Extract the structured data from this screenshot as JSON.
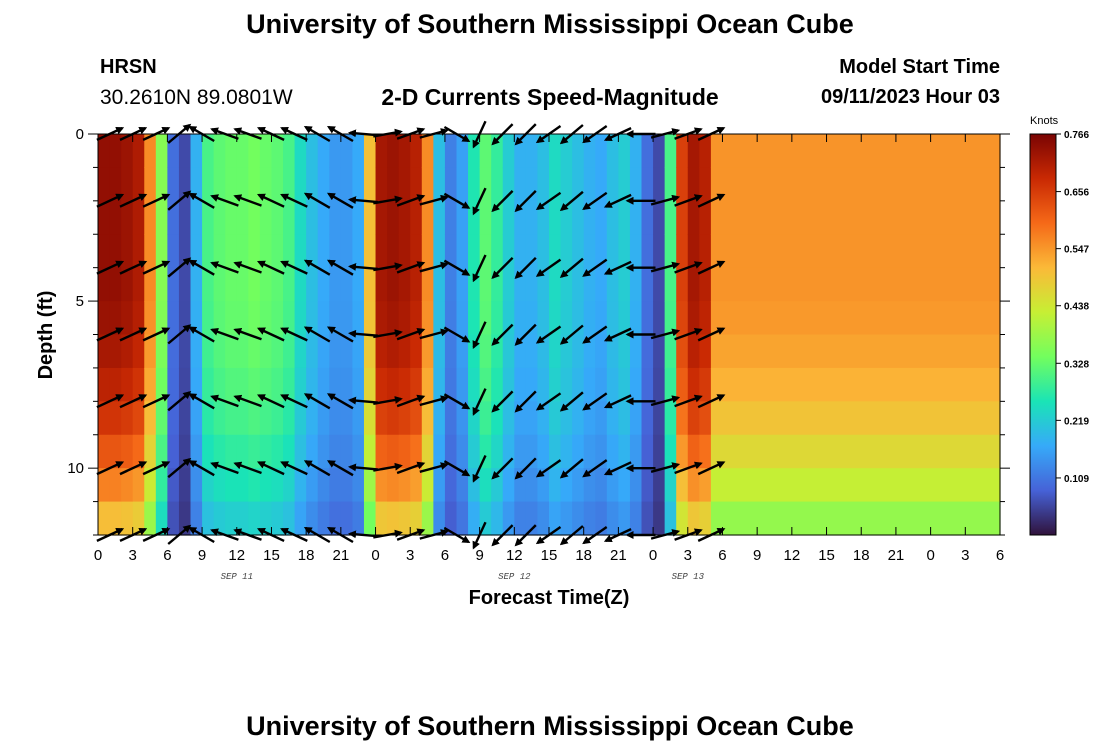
{
  "header": {
    "title": "University of Southern Mississippi Ocean Cube",
    "station": "HRSN",
    "coords": "30.2610N  89.0801W",
    "subtitle": "2-D Currents Speed-Magnitude",
    "model_start_label": "Model Start Time",
    "model_start_value": "09/11/2023 Hour 03",
    "footer_title": "University of Southern Mississippi Ocean Cube"
  },
  "chart_data": {
    "type": "heatmap",
    "xlabel": "Forecast Time(Z)",
    "ylabel": "Depth (ft)",
    "x_unit": "hours from 00Z SEP 11",
    "xlim": [
      0,
      78
    ],
    "ylim": [
      0,
      12
    ],
    "y_inverted": true,
    "x_tick_values": [
      0,
      3,
      6,
      9,
      12,
      15,
      18,
      21,
      24,
      27,
      30,
      33,
      36,
      39,
      42,
      45,
      48,
      51,
      54,
      57,
      60,
      63,
      66,
      69,
      72,
      75,
      78
    ],
    "x_tick_labels": [
      "0",
      "3",
      "6",
      "9",
      "12",
      "15",
      "18",
      "21",
      "0",
      "3",
      "6",
      "9",
      "12",
      "15",
      "18",
      "21",
      "0",
      "3",
      "6",
      "9",
      "12",
      "15",
      "18",
      "21",
      "0",
      "3",
      "6"
    ],
    "y_tick_values": [
      0,
      5,
      10
    ],
    "y_tick_labels": [
      "0",
      "5",
      "10"
    ],
    "date_labels": [
      {
        "x": 12,
        "label": "SEP 11"
      },
      {
        "x": 36,
        "label": "SEP 12"
      },
      {
        "x": 51,
        "label": "SEP 13"
      }
    ],
    "colorbar": {
      "unit": "Knots",
      "min": 0.0,
      "max": 0.766,
      "ticks": [
        0.766,
        0.656,
        0.547,
        0.438,
        0.328,
        0.219,
        0.109
      ],
      "colors": [
        "#30123b",
        "#4662d7",
        "#36aaf9",
        "#1ae4b6",
        "#72fe5e",
        "#c7ef34",
        "#fbb938",
        "#f56918",
        "#c92903",
        "#7a0403"
      ]
    },
    "grid": false,
    "time_hours": [
      0,
      1,
      2,
      3,
      4,
      5,
      6,
      7,
      8,
      9,
      10,
      11,
      12,
      13,
      14,
      15,
      16,
      17,
      18,
      19,
      20,
      21,
      22,
      23,
      24,
      25,
      26,
      27,
      28,
      29,
      30,
      31,
      32,
      33,
      34,
      35,
      36,
      37,
      38,
      39,
      40,
      41,
      42,
      43,
      44,
      45,
      46,
      47,
      48,
      49,
      50,
      51,
      52,
      53
    ],
    "speed_profile_knots": [
      0.74,
      0.74,
      0.73,
      0.71,
      0.56,
      0.36,
      0.1,
      0.06,
      0.18,
      0.3,
      0.32,
      0.33,
      0.33,
      0.34,
      0.33,
      0.32,
      0.3,
      0.24,
      0.2,
      0.17,
      0.15,
      0.15,
      0.17,
      0.5,
      0.72,
      0.73,
      0.72,
      0.7,
      0.56,
      0.2,
      0.12,
      0.16,
      0.26,
      0.32,
      0.28,
      0.22,
      0.18,
      0.18,
      0.2,
      0.24,
      0.22,
      0.2,
      0.18,
      0.17,
      0.2,
      0.22,
      0.18,
      0.1,
      0.06,
      0.3,
      0.65,
      0.72,
      0.7,
      0.55
    ],
    "depth_levels_ft": [
      0,
      1,
      2,
      3,
      4,
      5,
      6,
      7,
      8,
      9,
      10,
      11,
      12
    ],
    "depth_factor": [
      1.0,
      1.0,
      1.0,
      1.0,
      1.0,
      0.99,
      0.97,
      0.94,
      0.9,
      0.84,
      0.77,
      0.68,
      0.58
    ],
    "vector_times": [
      1,
      3,
      5,
      7,
      9,
      11,
      13,
      15,
      17,
      19,
      21,
      23,
      25,
      27,
      29,
      31,
      33,
      35,
      37,
      39,
      41,
      43,
      45,
      47,
      49,
      51,
      53
    ],
    "vector_depths": [
      0,
      2,
      4,
      6,
      8,
      10,
      12
    ],
    "vector_directions_deg": [
      25,
      25,
      25,
      40,
      150,
      160,
      160,
      155,
      155,
      150,
      150,
      175,
      10,
      20,
      15,
      330,
      245,
      225,
      225,
      215,
      220,
      215,
      205,
      180,
      15,
      20,
      25
    ]
  }
}
